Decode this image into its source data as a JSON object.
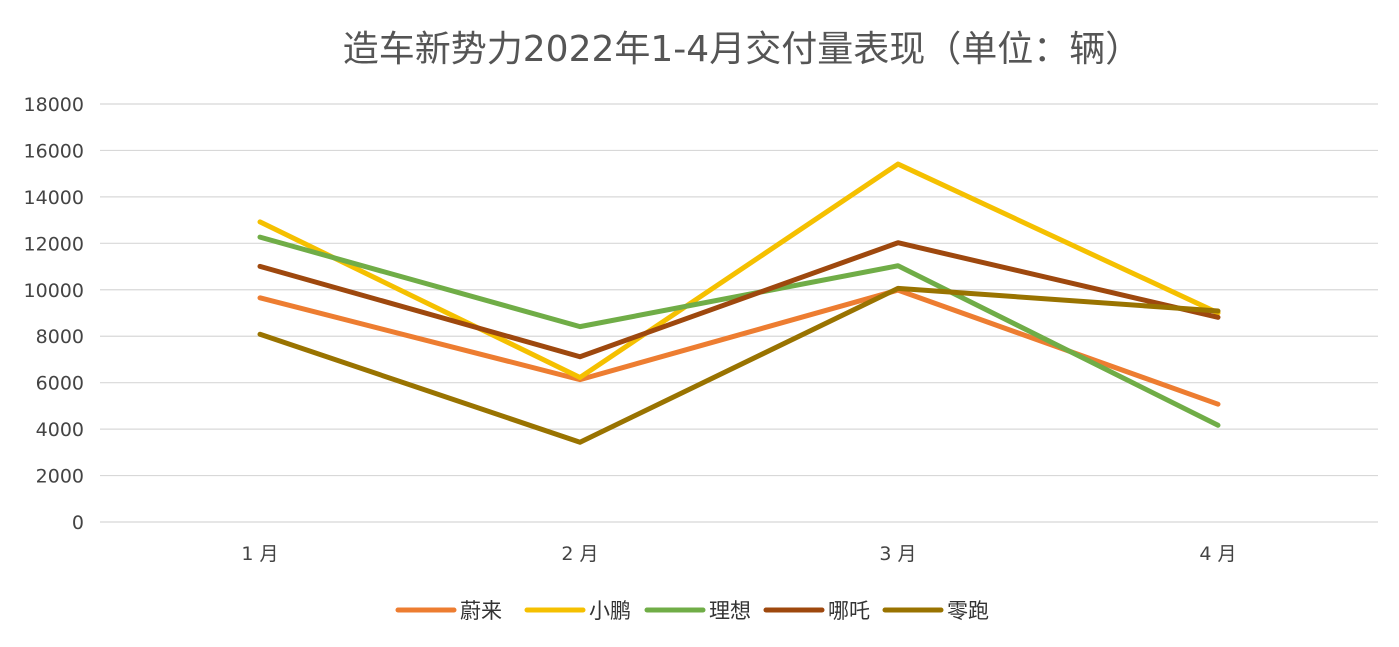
{
  "chart_data": {
    "type": "line",
    "title": "造车新势力2022年1-4月交付量表现（单位：辆）",
    "xlabel": "",
    "ylabel": "",
    "categories": [
      "1 月",
      "2 月",
      "3 月",
      "4 月"
    ],
    "ylim": [
      0,
      18000
    ],
    "yticks": [
      0,
      2000,
      4000,
      6000,
      8000,
      10000,
      12000,
      14000,
      16000,
      18000
    ],
    "grid": true,
    "legend_position": "bottom",
    "series": [
      {
        "name": "蔚来",
        "color": "#ed7d31",
        "values": [
          9652,
          6131,
          9985,
          5074
        ]
      },
      {
        "name": "小鹏",
        "color": "#f5c000",
        "values": [
          12922,
          6225,
          15414,
          9002
        ]
      },
      {
        "name": "理想",
        "color": "#70ad47",
        "values": [
          12268,
          8414,
          11034,
          4167
        ]
      },
      {
        "name": "哪吒",
        "color": "#9e480e",
        "values": [
          11009,
          7117,
          12026,
          8813
        ]
      },
      {
        "name": "零跑",
        "color": "#997300",
        "values": [
          8085,
          3435,
          10059,
          9087
        ]
      }
    ]
  }
}
